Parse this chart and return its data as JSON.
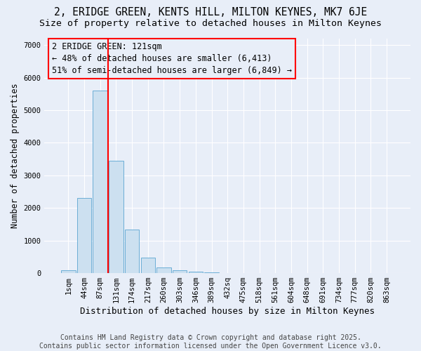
{
  "title": "2, ERIDGE GREEN, KENTS HILL, MILTON KEYNES, MK7 6JE",
  "subtitle": "Size of property relative to detached houses in Milton Keynes",
  "xlabel": "Distribution of detached houses by size in Milton Keynes",
  "ylabel": "Number of detached properties",
  "bar_labels": [
    "1sqm",
    "44sqm",
    "87sqm",
    "131sqm",
    "174sqm",
    "217sqm",
    "260sqm",
    "303sqm",
    "346sqm",
    "389sqm",
    "432sq",
    "475sqm",
    "518sqm",
    "561sqm",
    "604sqm",
    "648sqm",
    "691sqm",
    "734sqm",
    "777sqm",
    "820sqm",
    "863sqm"
  ],
  "bar_values": [
    80,
    2300,
    5600,
    3450,
    1330,
    470,
    170,
    90,
    50,
    30,
    0,
    0,
    0,
    0,
    0,
    0,
    0,
    0,
    0,
    0,
    0
  ],
  "bar_color": "#cce0f0",
  "bar_edgecolor": "#6baed6",
  "vline_x": 2.5,
  "vline_color": "red",
  "annotation_text": "2 ERIDGE GREEN: 121sqm\n← 48% of detached houses are smaller (6,413)\n51% of semi-detached houses are larger (6,849) →",
  "ylim": [
    0,
    7200
  ],
  "yticks": [
    0,
    1000,
    2000,
    3000,
    4000,
    5000,
    6000,
    7000
  ],
  "background_color": "#e8eef8",
  "grid_color": "#ffffff",
  "footer_text": "Contains HM Land Registry data © Crown copyright and database right 2025.\nContains public sector information licensed under the Open Government Licence v3.0.",
  "title_fontsize": 10.5,
  "subtitle_fontsize": 9.5,
  "xlabel_fontsize": 9,
  "ylabel_fontsize": 8.5,
  "tick_fontsize": 7.5,
  "annotation_fontsize": 8.5,
  "footer_fontsize": 7
}
